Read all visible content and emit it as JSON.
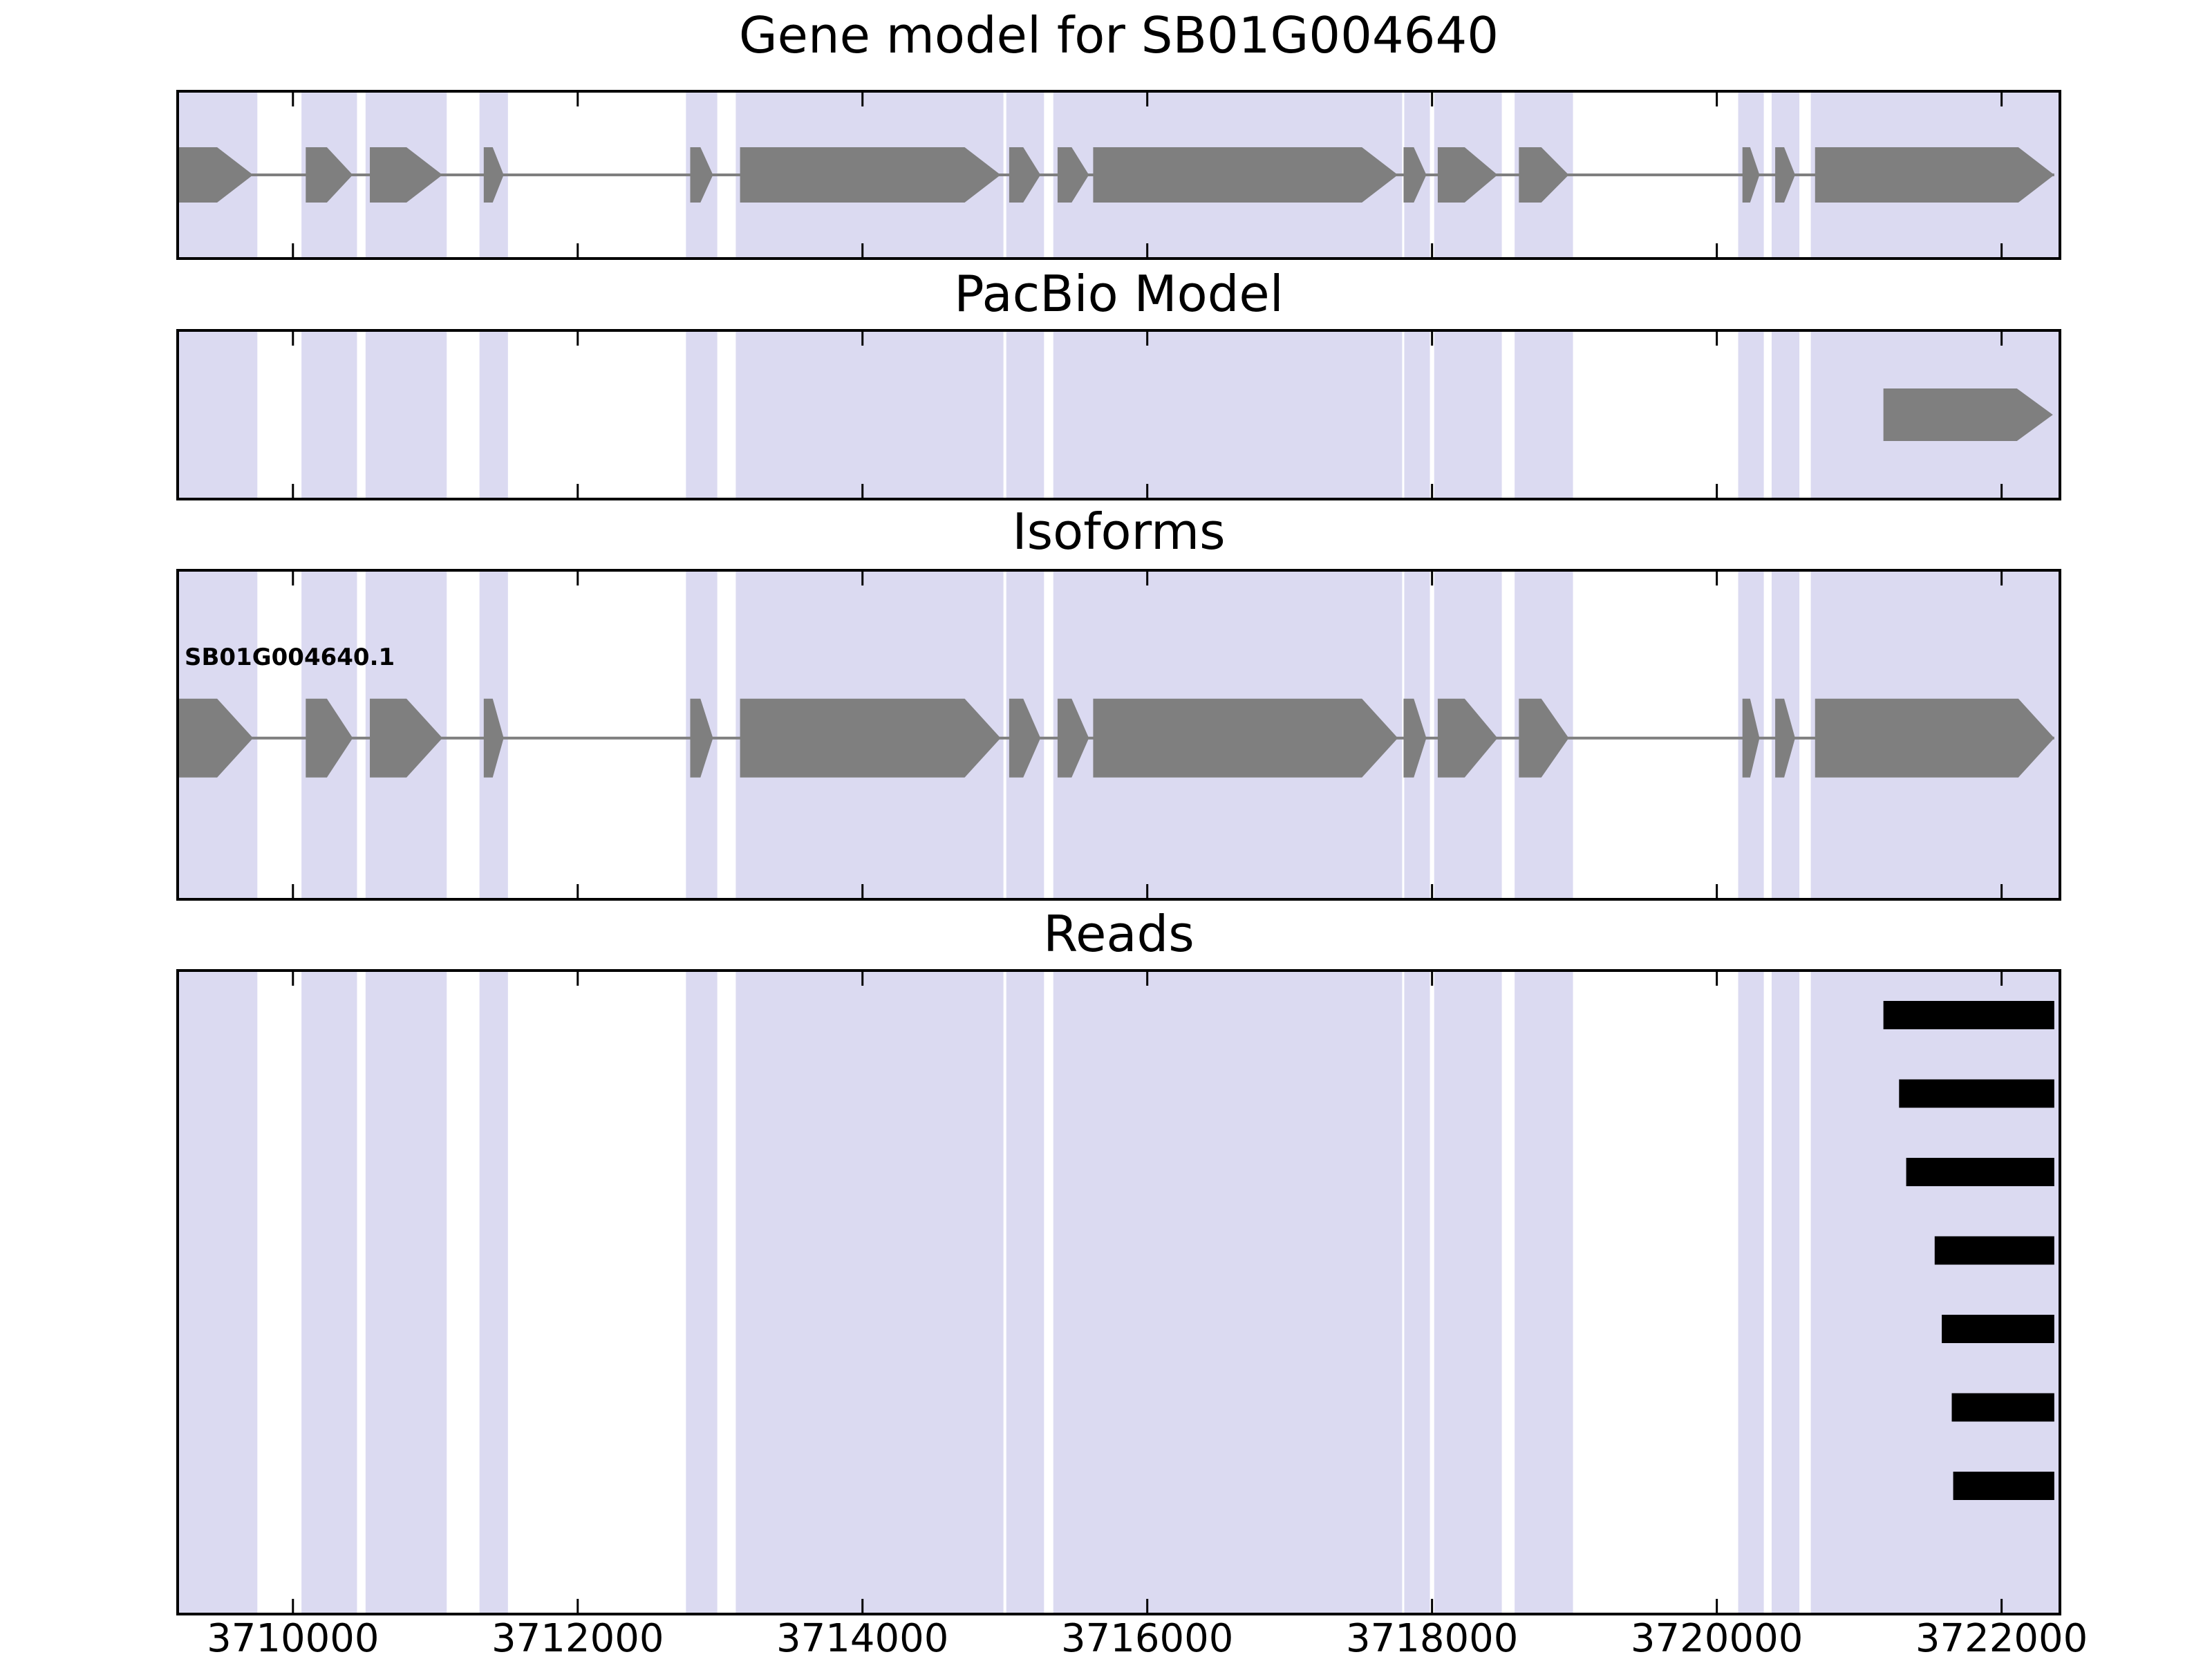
{
  "chart_data": {
    "type": "gene-model-tracks",
    "x_axis": {
      "range": [
        3709200,
        3722400
      ],
      "ticks": [
        3710000,
        3712000,
        3714000,
        3716000,
        3718000,
        3720000,
        3722000
      ],
      "tick_labels": [
        "3710000",
        "3712000",
        "3714000",
        "3716000",
        "3718000",
        "3720000",
        "3722000"
      ]
    },
    "highlight_bands": [
      [
        3709200,
        3709750
      ],
      [
        3710060,
        3710450
      ],
      [
        3710510,
        3711080
      ],
      [
        3711310,
        3711510
      ],
      [
        3712760,
        3712980
      ],
      [
        3713110,
        3714990
      ],
      [
        3715010,
        3715275
      ],
      [
        3715340,
        3717790
      ],
      [
        3717805,
        3717985
      ],
      [
        3718015,
        3718490
      ],
      [
        3718580,
        3718990
      ],
      [
        3720150,
        3720330
      ],
      [
        3720385,
        3720580
      ],
      [
        3720660,
        3722400
      ]
    ],
    "panels": [
      {
        "id": "gene-model",
        "title": "Gene model for SB01G004640",
        "kind": "transcript",
        "direction": "right",
        "exons": [
          [
            3709200,
            3709720
          ],
          [
            3710090,
            3710420
          ],
          [
            3710540,
            3711050
          ],
          [
            3711340,
            3711480
          ],
          [
            3712790,
            3712950
          ],
          [
            3713140,
            3714970
          ],
          [
            3715030,
            3715250
          ],
          [
            3715370,
            3715590
          ],
          [
            3715620,
            3717760
          ],
          [
            3717800,
            3717960
          ],
          [
            3718040,
            3718460
          ],
          [
            3718610,
            3718960
          ],
          [
            3720180,
            3720300
          ],
          [
            3720410,
            3720550
          ],
          [
            3720690,
            3722370
          ]
        ]
      },
      {
        "id": "pacbio-model",
        "title": "PacBio Model",
        "kind": "transcript",
        "direction": "right",
        "exons": [
          [
            3721170,
            3722360
          ]
        ]
      },
      {
        "id": "isoforms",
        "title": "Isoforms",
        "kind": "transcript",
        "direction": "right",
        "label": "SB01G004640.1",
        "exons": [
          [
            3709200,
            3709720
          ],
          [
            3710090,
            3710420
          ],
          [
            3710540,
            3711050
          ],
          [
            3711340,
            3711480
          ],
          [
            3712790,
            3712950
          ],
          [
            3713140,
            3714970
          ],
          [
            3715030,
            3715250
          ],
          [
            3715370,
            3715590
          ],
          [
            3715620,
            3717760
          ],
          [
            3717800,
            3717960
          ],
          [
            3718040,
            3718460
          ],
          [
            3718610,
            3718960
          ],
          [
            3720180,
            3720300
          ],
          [
            3720410,
            3720550
          ],
          [
            3720690,
            3722370
          ]
        ]
      },
      {
        "id": "reads",
        "title": "Reads",
        "kind": "reads",
        "reads": [
          [
            3721170,
            3722370
          ],
          [
            3721280,
            3722370
          ],
          [
            3721330,
            3722370
          ],
          [
            3721530,
            3722370
          ],
          [
            3721580,
            3722370
          ],
          [
            3721650,
            3722370
          ],
          [
            3721660,
            3722370
          ]
        ]
      }
    ],
    "colors": {
      "exon": "#7f7f7f",
      "intron_line": "#7f7f7f",
      "read": "#000000",
      "band": "#dbdaf1",
      "axis": "#000000",
      "background": "#ffffff"
    }
  }
}
